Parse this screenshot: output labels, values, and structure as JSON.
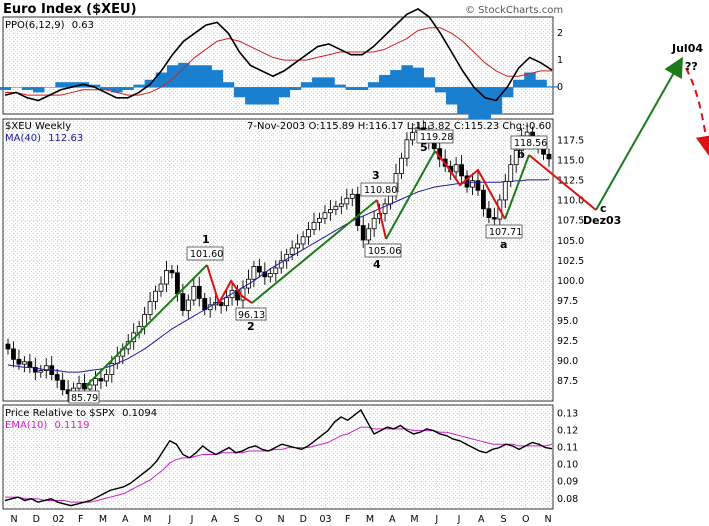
{
  "title": "Euro Index ($XEU)",
  "watermark": "© StockCharts.com",
  "ppo": {
    "label_name": "PPO(6,12,9)",
    "label_value": "0.63",
    "ticks": [
      "2",
      "1",
      "0"
    ],
    "tick_values": [
      2,
      1,
      0
    ]
  },
  "price": {
    "symbol_label": "$XEU Weekly",
    "ma_label": "MA(40)",
    "ma_value": "112.63",
    "ohlc_bar": "7-Nov-2003 O:115.89 H:116.17 L:113.82 C:115.23 Chg:-0.60",
    "ticks": [
      "117.5",
      "115.0",
      "112.5",
      "110.0",
      "107.5",
      "105.0",
      "102.5",
      "100.0",
      "97.5",
      "95.0",
      "92.5",
      "90.0",
      "87.5"
    ],
    "tick_values": [
      117.5,
      115.0,
      112.5,
      110.0,
      107.5,
      105.0,
      102.5,
      100.0,
      97.5,
      95.0,
      92.5,
      90.0,
      87.5
    ],
    "callouts": [
      {
        "text": "101.60",
        "value": 101.6
      },
      {
        "text": "96.13",
        "value": 96.13
      },
      {
        "text": "110.80",
        "value": 110.8
      },
      {
        "text": "105.06",
        "value": 105.06
      },
      {
        "text": "119.28",
        "value": 119.28
      },
      {
        "text": "107.71",
        "value": 107.71
      },
      {
        "text": "118.56",
        "value": 118.56
      },
      {
        "text": "85.79",
        "value": 85.79
      }
    ],
    "wave_labels": [
      "1",
      "2",
      "3",
      "4",
      "5",
      "a",
      "b",
      "c",
      "Dez03",
      "Jul04",
      "??"
    ]
  },
  "relative": {
    "label_name": "Price Relative to $SPX",
    "label_value": "0.1094",
    "ema_name": "EMA(10)",
    "ema_value": "0.1119",
    "ticks": [
      "0.13",
      "0.12",
      "0.11",
      "0.10",
      "0.09",
      "0.08"
    ],
    "tick_values": [
      0.13,
      0.12,
      0.11,
      0.1,
      0.09,
      0.08
    ]
  },
  "x_axis": {
    "months": [
      "N",
      "D",
      "02",
      "F",
      "M",
      "A",
      "M",
      "J",
      "J",
      "A",
      "S",
      "O",
      "N",
      "D",
      "03",
      "F",
      "M",
      "A",
      "M",
      "J",
      "J",
      "A",
      "S",
      "O",
      "N"
    ]
  },
  "colors": {
    "price_bar": "#000000",
    "ma_line": "#1a1aa0",
    "ppo_line": "#000000",
    "ppo_signal": "#cc2222",
    "ppo_hist": "#1a7fcf",
    "ema_line": "#cc22cc",
    "impulse_line": "#1c7a1c",
    "correction_line": "#dd1111",
    "grid": "#bfbfbf"
  },
  "chart_data": [
    {
      "type": "line",
      "title": "PPO(6,12,9)",
      "series": [
        {
          "name": "PPO(6,12,9)",
          "values": [
            -0.3,
            -0.2,
            -0.4,
            -0.5,
            -0.3,
            -0.1,
            0.0,
            0.1,
            0.0,
            -0.2,
            -0.4,
            -0.4,
            -0.2,
            0.1,
            0.6,
            1.2,
            1.7,
            2.0,
            2.3,
            2.4,
            2.0,
            1.3,
            0.8,
            0.6,
            0.4,
            0.6,
            0.9,
            1.2,
            1.5,
            1.6,
            1.4,
            1.2,
            1.2,
            1.5,
            1.9,
            2.3,
            2.7,
            2.9,
            2.6,
            2.0,
            1.3,
            0.6,
            0.0,
            -0.4,
            -0.5,
            0.0,
            0.7,
            1.1,
            0.9,
            0.63
          ]
        },
        {
          "name": "Signal",
          "values": [
            -0.2,
            -0.2,
            -0.3,
            -0.3,
            -0.3,
            -0.3,
            -0.2,
            -0.1,
            -0.1,
            -0.1,
            -0.2,
            -0.3,
            -0.3,
            -0.2,
            0.0,
            0.3,
            0.7,
            1.1,
            1.4,
            1.7,
            1.8,
            1.7,
            1.5,
            1.3,
            1.1,
            1.0,
            1.0,
            1.0,
            1.1,
            1.2,
            1.3,
            1.3,
            1.3,
            1.3,
            1.4,
            1.6,
            1.8,
            2.1,
            2.2,
            2.2,
            2.0,
            1.7,
            1.3,
            0.9,
            0.6,
            0.4,
            0.4,
            0.5,
            0.6,
            0.6
          ]
        }
      ],
      "ylim": [
        -1.0,
        2.6
      ]
    },
    {
      "type": "bar",
      "title": "$XEU Weekly",
      "x_start": "2001-11",
      "close": [
        91.5,
        90.2,
        89.6,
        89.9,
        89.2,
        88.6,
        88.8,
        89.4,
        88.3,
        87.6,
        86.4,
        85.9,
        86.6,
        87.2,
        86.5,
        87.0,
        87.8,
        87.5,
        88.3,
        89.7,
        90.6,
        91.5,
        92.4,
        93.5,
        94.3,
        95.8,
        97.4,
        98.7,
        99.6,
        101.3,
        101.0,
        98.4,
        96.3,
        97.6,
        99.3,
        97.8,
        96.4,
        97.0,
        97.3,
        96.9,
        97.9,
        98.8,
        97.6,
        99.1,
        100.2,
        101.8,
        101.1,
        100.5,
        100.9,
        101.6,
        102.5,
        103.3,
        104.1,
        104.6,
        105.5,
        106.4,
        107.3,
        107.8,
        108.5,
        108.9,
        109.3,
        109.6,
        110.3,
        110.8,
        106.9,
        105.1,
        106.5,
        107.8,
        108.4,
        109.6,
        111.1,
        113.4,
        115.3,
        117.6,
        118.5,
        119.1,
        118.2,
        117.4,
        116.5,
        115.2,
        114.3,
        113.6,
        114.5,
        113.1,
        111.7,
        112.5,
        111.3,
        109.0,
        107.9,
        107.71,
        110.1,
        112.4,
        114.5,
        116.3,
        118.1,
        118.56,
        117.2,
        116.9,
        115.8,
        115.23
      ],
      "ma40": [
        89.5,
        89.4,
        89.3,
        89.2,
        89.2,
        89.1,
        89.0,
        88.9,
        88.9,
        88.8,
        88.7,
        88.6,
        88.6,
        88.6,
        88.7,
        88.8,
        88.9,
        89.0,
        89.2,
        89.4,
        89.7,
        90.0,
        90.3,
        90.7,
        91.1,
        91.5,
        92.0,
        92.5,
        93.0,
        93.5,
        94.0,
        94.4,
        94.8,
        95.2,
        95.6,
        96.0,
        96.4,
        96.8,
        97.2,
        97.6,
        98.0,
        98.4,
        98.8,
        99.2,
        99.6,
        100.0,
        100.5,
        101.0,
        101.5,
        101.9,
        102.3,
        102.7,
        103.1,
        103.5,
        103.9,
        104.3,
        104.7,
        105.1,
        105.5,
        105.9,
        106.3,
        106.7,
        107.1,
        107.5,
        107.8,
        108.1,
        108.4,
        108.7,
        109.0,
        109.3,
        109.6,
        109.9,
        110.2,
        110.5,
        110.8,
        111.1,
        111.3,
        111.5,
        111.7,
        111.8,
        111.9,
        112.0,
        112.1,
        112.2,
        112.2,
        112.3,
        112.3,
        112.3,
        112.3,
        112.3,
        112.3,
        112.4,
        112.4,
        112.5,
        112.5,
        112.6,
        112.6,
        112.6,
        112.6,
        112.63
      ],
      "ylim": [
        85,
        120
      ],
      "annotations": [
        "1 101.60",
        "2 96.13",
        "3 110.80",
        "4 105.06",
        "5 119.28",
        "a 107.71",
        "b 118.56",
        "c Dez03",
        "Jul04 ??",
        "85.79"
      ]
    },
    {
      "type": "line",
      "title": "Price Relative to $SPX",
      "series": [
        {
          "name": "Price Relative to $SPX",
          "values": [
            0.079,
            0.08,
            0.081,
            0.079,
            0.08,
            0.078,
            0.079,
            0.08,
            0.078,
            0.077,
            0.076,
            0.077,
            0.078,
            0.079,
            0.081,
            0.083,
            0.085,
            0.086,
            0.087,
            0.089,
            0.092,
            0.095,
            0.098,
            0.102,
            0.108,
            0.114,
            0.112,
            0.106,
            0.104,
            0.107,
            0.111,
            0.108,
            0.106,
            0.108,
            0.11,
            0.107,
            0.108,
            0.11,
            0.111,
            0.109,
            0.108,
            0.11,
            0.112,
            0.111,
            0.11,
            0.109,
            0.111,
            0.114,
            0.117,
            0.12,
            0.125,
            0.128,
            0.126,
            0.129,
            0.132,
            0.125,
            0.118,
            0.12,
            0.122,
            0.121,
            0.123,
            0.12,
            0.118,
            0.119,
            0.121,
            0.12,
            0.118,
            0.117,
            0.115,
            0.114,
            0.112,
            0.11,
            0.108,
            0.107,
            0.109,
            0.11,
            0.112,
            0.111,
            0.109,
            0.111,
            0.113,
            0.112,
            0.11,
            0.1094
          ]
        },
        {
          "name": "EMA(10)",
          "values": [
            0.081,
            0.081,
            0.081,
            0.08,
            0.08,
            0.08,
            0.079,
            0.079,
            0.079,
            0.079,
            0.078,
            0.078,
            0.078,
            0.078,
            0.079,
            0.08,
            0.081,
            0.082,
            0.083,
            0.085,
            0.087,
            0.089,
            0.091,
            0.094,
            0.097,
            0.101,
            0.103,
            0.104,
            0.104,
            0.105,
            0.106,
            0.106,
            0.106,
            0.107,
            0.107,
            0.107,
            0.107,
            0.108,
            0.108,
            0.108,
            0.108,
            0.109,
            0.109,
            0.11,
            0.11,
            0.11,
            0.11,
            0.111,
            0.112,
            0.113,
            0.115,
            0.117,
            0.118,
            0.12,
            0.122,
            0.122,
            0.121,
            0.121,
            0.121,
            0.121,
            0.121,
            0.121,
            0.12,
            0.12,
            0.12,
            0.12,
            0.119,
            0.119,
            0.118,
            0.117,
            0.116,
            0.115,
            0.114,
            0.113,
            0.112,
            0.112,
            0.112,
            0.112,
            0.111,
            0.111,
            0.111,
            0.111,
            0.111,
            0.1119
          ]
        }
      ],
      "ylim": [
        0.075,
        0.135
      ]
    }
  ]
}
